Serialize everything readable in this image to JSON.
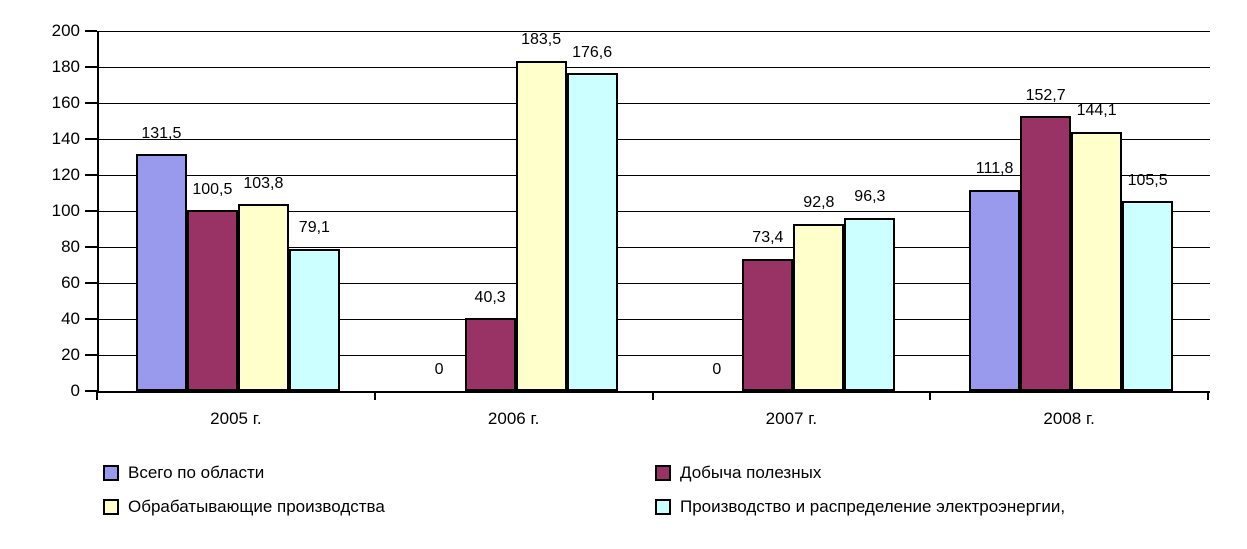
{
  "chart_data": {
    "type": "bar",
    "title": "",
    "xlabel": "",
    "ylabel": "",
    "categories": [
      "2005 г.",
      "2006 г.",
      "2007 г.",
      "2008 г."
    ],
    "series": [
      {
        "name": "Всего по области",
        "color": "#9999EE",
        "values": [
          131.5,
          0,
          0,
          111.8
        ],
        "labels": [
          "131,5",
          "0",
          "0",
          "111,8"
        ]
      },
      {
        "name": "Добыча полезных",
        "color": "#993366",
        "values": [
          100.5,
          40.3,
          73.4,
          152.7
        ],
        "labels": [
          "100,5",
          "40,3",
          "73,4",
          "152,7"
        ]
      },
      {
        "name": "Обрабатывающие производства",
        "color": "#FFFFCC",
        "values": [
          103.8,
          183.5,
          92.8,
          144.1
        ],
        "labels": [
          "103,8",
          "183,5",
          "92,8",
          "144,1"
        ]
      },
      {
        "name": "Производство и распределение электроэнергии,",
        "color": "#CCFFFF",
        "values": [
          79.1,
          176.6,
          96.3,
          105.5
        ],
        "labels": [
          "79,1",
          "176,6",
          "96,3",
          "105,5"
        ]
      }
    ],
    "ylim": [
      0,
      200
    ],
    "ytick_step": 20,
    "ytick_labels": [
      "0",
      "20",
      "40",
      "60",
      "80",
      "100",
      "120",
      "140",
      "160",
      "180",
      "200"
    ],
    "grid": true,
    "legend_position": "bottom-two-columns",
    "colors": {
      "background": "#FFFFFF",
      "axis": "#000000",
      "gridline": "#000000",
      "bar_border": "#000000",
      "text": "#000000"
    }
  }
}
